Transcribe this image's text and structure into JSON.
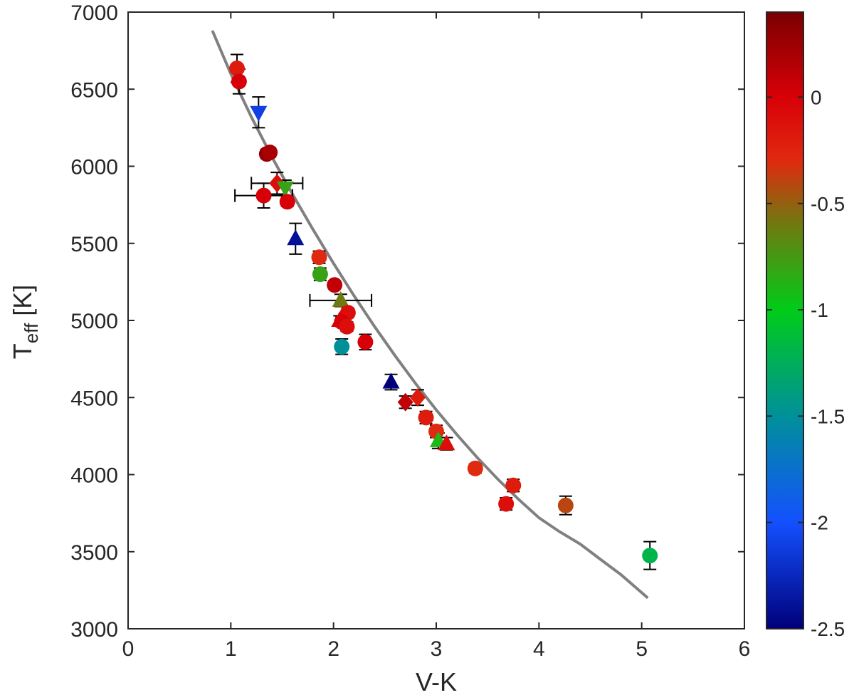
{
  "chart_data": {
    "type": "scatter",
    "title": "",
    "xlabel": "V-K",
    "ylabel": {
      "main": "T",
      "sub": "eff",
      "rest": " [K]"
    },
    "xlim": [
      0,
      6
    ],
    "ylim": [
      3000,
      7000
    ],
    "xticks": [
      0,
      1,
      2,
      3,
      4,
      5,
      6
    ],
    "yticks": [
      3000,
      3500,
      4000,
      4500,
      5000,
      5500,
      6000,
      6500,
      7000
    ],
    "grid": false,
    "legend": "none",
    "colorbar": {
      "range": [
        -2.5,
        0.4
      ],
      "ticks": [
        0,
        -0.5,
        -1,
        -1.5,
        -2,
        -2.5
      ],
      "colormap": [
        {
          "v": -2.5,
          "c": "#00007a"
        },
        {
          "v": -2.0,
          "c": "#1450ff"
        },
        {
          "v": -1.5,
          "c": "#00909a"
        },
        {
          "v": -1.0,
          "c": "#00cc18"
        },
        {
          "v": -0.6,
          "c": "#6f7a10"
        },
        {
          "v": -0.3,
          "c": "#e02a10"
        },
        {
          "v": 0.0,
          "c": "#d80008"
        },
        {
          "v": 0.4,
          "c": "#7a0000"
        }
      ]
    },
    "fit_curve": {
      "color": "#808080",
      "points": [
        [
          0.82,
          6880
        ],
        [
          1.0,
          6600
        ],
        [
          1.2,
          6320
        ],
        [
          1.4,
          6060
        ],
        [
          1.6,
          5820
        ],
        [
          1.8,
          5590
        ],
        [
          2.0,
          5370
        ],
        [
          2.2,
          5160
        ],
        [
          2.4,
          4960
        ],
        [
          2.6,
          4770
        ],
        [
          2.8,
          4590
        ],
        [
          3.0,
          4420
        ],
        [
          3.2,
          4260
        ],
        [
          3.4,
          4110
        ],
        [
          3.6,
          3970
        ],
        [
          3.8,
          3840
        ],
        [
          4.0,
          3720
        ],
        [
          4.2,
          3630
        ],
        [
          4.4,
          3550
        ],
        [
          4.6,
          3450
        ],
        [
          4.8,
          3350
        ],
        [
          5.06,
          3200
        ]
      ]
    },
    "points": [
      {
        "x": 1.06,
        "y": 6635,
        "z": -0.2,
        "m": "o",
        "ey": 90
      },
      {
        "x": 1.08,
        "y": 6550,
        "z": 0.0,
        "m": "o",
        "ey": 80
      },
      {
        "x": 1.27,
        "y": 6350,
        "z": -2.1,
        "m": "v",
        "ey": 100
      },
      {
        "x": 1.35,
        "y": 6080,
        "z": 0.3,
        "m": "o",
        "ey": 30
      },
      {
        "x": 1.38,
        "y": 6090,
        "z": 0.2,
        "m": "o",
        "ey": 30
      },
      {
        "x": 1.32,
        "y": 5810,
        "z": 0.0,
        "m": "o",
        "ey": 80,
        "ex": 0.28
      },
      {
        "x": 1.45,
        "y": 5890,
        "z": -0.1,
        "m": "d",
        "ey": 70,
        "ex": 0.25
      },
      {
        "x": 1.53,
        "y": 5860,
        "z": -0.8,
        "m": "v",
        "ey": 50
      },
      {
        "x": 1.55,
        "y": 5770,
        "z": 0.0,
        "m": "o",
        "ey": 30
      },
      {
        "x": 1.63,
        "y": 5530,
        "z": -2.4,
        "m": "^",
        "ey": 100
      },
      {
        "x": 1.86,
        "y": 5410,
        "z": -0.3,
        "m": "o",
        "ey": 40
      },
      {
        "x": 1.87,
        "y": 5300,
        "z": -0.8,
        "m": "o",
        "ey": 40
      },
      {
        "x": 2.01,
        "y": 5230,
        "z": 0.1,
        "m": "o",
        "ey": 25
      },
      {
        "x": 2.07,
        "y": 5130,
        "z": -0.6,
        "m": "^",
        "ey": 40,
        "ex": 0.3
      },
      {
        "x": 2.14,
        "y": 5050,
        "z": -0.1,
        "m": "o",
        "ey": 30
      },
      {
        "x": 2.06,
        "y": 5000,
        "z": 0.0,
        "m": "^",
        "ey": 30
      },
      {
        "x": 2.08,
        "y": 4990,
        "z": 0.0,
        "m": "o",
        "ey": 30
      },
      {
        "x": 2.13,
        "y": 4960,
        "z": -0.1,
        "m": "o",
        "ey": 30
      },
      {
        "x": 2.08,
        "y": 4830,
        "z": -1.5,
        "m": "o",
        "ey": 50
      },
      {
        "x": 2.31,
        "y": 4860,
        "z": 0.0,
        "m": "o",
        "ey": 50
      },
      {
        "x": 2.56,
        "y": 4600,
        "z": -2.5,
        "m": "^",
        "ey": 50
      },
      {
        "x": 2.7,
        "y": 4470,
        "z": 0.1,
        "m": "d",
        "ey": 40
      },
      {
        "x": 2.82,
        "y": 4500,
        "z": -0.2,
        "m": "d",
        "ey": 50
      },
      {
        "x": 2.9,
        "y": 4370,
        "z": -0.2,
        "m": "o",
        "ey": 40
      },
      {
        "x": 3.0,
        "y": 4280,
        "z": -0.3,
        "m": "o",
        "ey": 40
      },
      {
        "x": 3.02,
        "y": 4220,
        "z": -0.9,
        "m": "^",
        "ey": 50
      },
      {
        "x": 3.1,
        "y": 4200,
        "z": -0.1,
        "m": "^",
        "ey": 40
      },
      {
        "x": 3.38,
        "y": 4040,
        "z": -0.3,
        "m": "o",
        "ey": 30
      },
      {
        "x": 3.75,
        "y": 3930,
        "z": -0.2,
        "m": "o",
        "ey": 40
      },
      {
        "x": 3.68,
        "y": 3810,
        "z": -0.1,
        "m": "o",
        "ey": 40
      },
      {
        "x": 4.26,
        "y": 3800,
        "z": -0.4,
        "m": "o",
        "ey": 60
      },
      {
        "x": 5.08,
        "y": 3475,
        "z": -1.2,
        "m": "o",
        "ey": 90
      }
    ]
  }
}
